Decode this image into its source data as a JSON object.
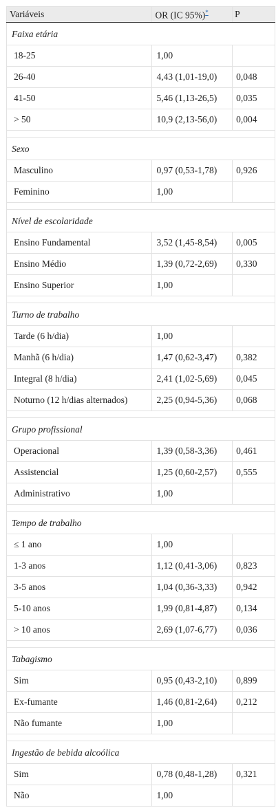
{
  "header": {
    "col1": "Variáveis",
    "col2": "OR (IC 95%)",
    "footnote_marker": "*",
    "col3": "P"
  },
  "groups": [
    {
      "title": "Faixa etária",
      "rows": [
        {
          "label": "18-25",
          "or": "1,00",
          "p": ""
        },
        {
          "label": "26-40",
          "or": "4,43 (1,01-19,0)",
          "p": "0,048"
        },
        {
          "label": "41-50",
          "or": "5,46 (1,13-26,5)",
          "p": "0,035"
        },
        {
          "label": "> 50",
          "or": "10,9 (2,13-56,0)",
          "p": "0,004"
        }
      ]
    },
    {
      "title": "Sexo",
      "rows": [
        {
          "label": "Masculino",
          "or": "0,97 (0,53-1,78)",
          "p": "0,926"
        },
        {
          "label": "Feminino",
          "or": "1,00",
          "p": ""
        }
      ]
    },
    {
      "title": "Nível de escolaridade",
      "rows": [
        {
          "label": "Ensino Fundamental",
          "or": "3,52 (1,45-8,54)",
          "p": "0,005"
        },
        {
          "label": "Ensino Médio",
          "or": "1,39 (0,72-2,69)",
          "p": "0,330"
        },
        {
          "label": "Ensino Superior",
          "or": "1,00",
          "p": ""
        }
      ]
    },
    {
      "title": "Turno de trabalho",
      "rows": [
        {
          "label": "Tarde (6 h/dia)",
          "or": "1,00",
          "p": ""
        },
        {
          "label": "Manhã (6 h/dia)",
          "or": "1,47 (0,62-3,47)",
          "p": "0,382"
        },
        {
          "label": "Integral (8 h/dia)",
          "or": "2,41 (1,02-5,69)",
          "p": "0,045"
        },
        {
          "label": "Noturno (12 h/dias alternados)",
          "or": "2,25 (0,94-5,36)",
          "p": "0,068"
        }
      ]
    },
    {
      "title": "Grupo profissional",
      "rows": [
        {
          "label": "Operacional",
          "or": "1,39 (0,58-3,36)",
          "p": "0,461"
        },
        {
          "label": "Assistencial",
          "or": "1,25 (0,60-2,57)",
          "p": "0,555"
        },
        {
          "label": "Administrativo",
          "or": "1,00",
          "p": ""
        }
      ]
    },
    {
      "title": "Tempo de trabalho",
      "rows": [
        {
          "label": "≤ 1 ano",
          "or": "1,00",
          "p": ""
        },
        {
          "label": "1-3 anos",
          "or": "1,12 (0,41-3,06)",
          "p": "0,823"
        },
        {
          "label": "3-5 anos",
          "or": "1,04 (0,36-3,33)",
          "p": "0,942"
        },
        {
          "label": "5-10 anos",
          "or": "1,99 (0,81-4,87)",
          "p": "0,134"
        },
        {
          "label": "> 10 anos",
          "or": "2,69 (1,07-6,77)",
          "p": "0,036"
        }
      ]
    },
    {
      "title": "Tabagismo",
      "rows": [
        {
          "label": "Sim",
          "or": "0,95 (0,43-2,10)",
          "p": "0,899"
        },
        {
          "label": "Ex-fumante",
          "or": "1,46 (0,81-2,64)",
          "p": "0,212"
        },
        {
          "label": "Não fumante",
          "or": "1,00",
          "p": ""
        }
      ]
    },
    {
      "title": "Ingestão de bebida alcoólica",
      "rows": [
        {
          "label": "Sim",
          "or": "0,78 (0,48-1,28)",
          "p": "0,321"
        },
        {
          "label": "Não",
          "or": "1,00",
          "p": ""
        }
      ]
    }
  ]
}
